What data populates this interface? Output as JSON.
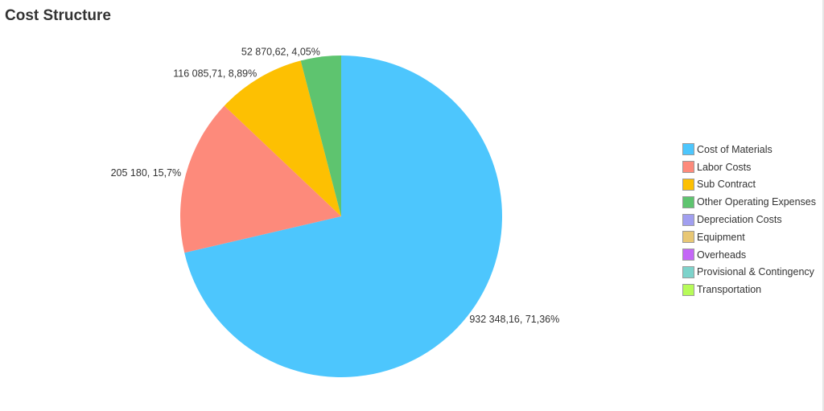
{
  "title": "Cost Structure",
  "chart_data": {
    "type": "pie",
    "title": "Cost Structure",
    "legend_position": "right",
    "series": [
      {
        "name": "Cost of Materials",
        "value": 932348.16,
        "percent": 71.36,
        "label": "932 348,16, 71,36%",
        "color": "#4dc6fd"
      },
      {
        "name": "Labor Costs",
        "value": 205180,
        "percent": 15.7,
        "label": "205 180, 15,7%",
        "color": "#fd8a7b"
      },
      {
        "name": "Sub Contract",
        "value": 116085.71,
        "percent": 8.89,
        "label": "116 085,71, 8,89%",
        "color": "#fdc002"
      },
      {
        "name": "Other Operating Expenses",
        "value": 52870.62,
        "percent": 4.05,
        "label": "52 870,62, 4,05%",
        "color": "#5ec46f"
      },
      {
        "name": "Depreciation Costs",
        "value": 0,
        "percent": 0,
        "label": "",
        "color": "#a19ff0"
      },
      {
        "name": "Equipment",
        "value": 0,
        "percent": 0,
        "label": "",
        "color": "#e8c774"
      },
      {
        "name": "Overheads",
        "value": 0,
        "percent": 0,
        "label": "",
        "color": "#c466f7"
      },
      {
        "name": "Provisional & Contingency",
        "value": 0,
        "percent": 0,
        "label": "",
        "color": "#7dd3cb"
      },
      {
        "name": "Transportation",
        "value": 0,
        "percent": 0,
        "label": "",
        "color": "#b7fb59"
      }
    ]
  }
}
